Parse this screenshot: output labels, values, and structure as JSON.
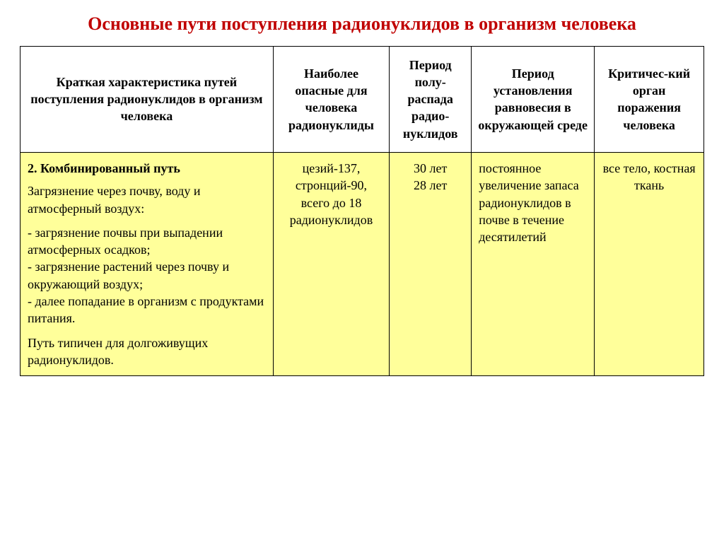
{
  "title": "Основные пути поступления радионуклидов в организм человека",
  "table": {
    "columns": [
      "Краткая характеристика путей поступления радионуклидов в организм человека",
      "Наиболее опасные для человека радионуклиды",
      "Период полу-распада радио-нуклидов",
      "Период установления равновесия в окружающей среде",
      "Критичес-кий орган поражения человека"
    ],
    "row": {
      "heading": "2. Комбинированный путь",
      "desc1": "Загрязнение через почву, воду и атмосферный воздух:",
      "desc2": "- загрязнение почвы при выпадении атмосферных осадков;",
      "desc3": "- загрязнение  растений  через  почву  и окружающий воздух;",
      "desc4": "- далее попадание в организм с продуктами питания.",
      "desc5": "Путь типичен для долгоживущих радионуклидов.",
      "nuclides": "цезий-137, стронций-90, всего до 18 радионуклидов",
      "halflife1": "30 лет",
      "halflife2": "28 лет",
      "equilibrium": "постоянное увеличение запаса радионуклидов в почве   в течение десятилетий",
      "organ": "все тело, костная ткань"
    },
    "header_bg": "#ffffff",
    "cell_bg": "#ffff9a",
    "border_color": "#000000",
    "title_color": "#c00000",
    "font_family": "Times New Roman",
    "title_fontsize": 26,
    "cell_fontsize": 18,
    "column_widths_pct": [
      37,
      17,
      12,
      18,
      16
    ]
  }
}
